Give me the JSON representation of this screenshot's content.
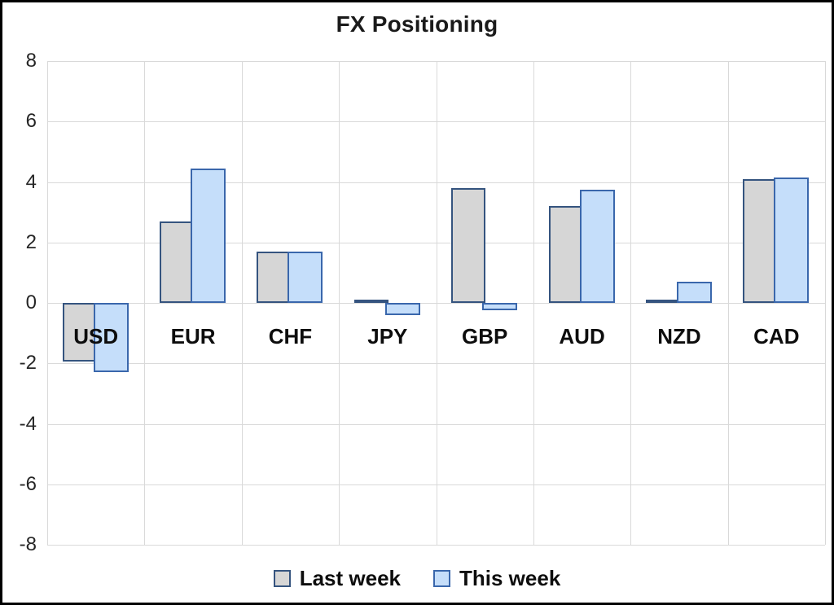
{
  "chart_data": {
    "type": "bar",
    "title": "FX Positioning",
    "categories": [
      "USD",
      "EUR",
      "CHF",
      "JPY",
      "GBP",
      "AUD",
      "NZD",
      "CAD"
    ],
    "series": [
      {
        "name": "Last week",
        "values": [
          -1.95,
          2.7,
          1.7,
          0.1,
          3.8,
          3.2,
          0.1,
          4.1
        ]
      },
      {
        "name": "This week",
        "values": [
          -2.3,
          4.45,
          1.7,
          -0.4,
          -0.25,
          3.75,
          0.7,
          4.15
        ]
      }
    ],
    "ylim": [
      -8,
      8
    ],
    "ytick_step": 2,
    "yticks": [
      8,
      6,
      4,
      2,
      0,
      -2,
      -4,
      -6,
      -8
    ],
    "grid": true,
    "legend_position": "bottom"
  },
  "colors": {
    "last_week_fill": "#D6D6D6",
    "last_week_border": "#35547F",
    "this_week_fill": "#C5DEFA",
    "this_week_border": "#3A67AC",
    "gridline": "#D9D9D9",
    "canvas_border": "#000000",
    "background": "#FFFFFF"
  }
}
